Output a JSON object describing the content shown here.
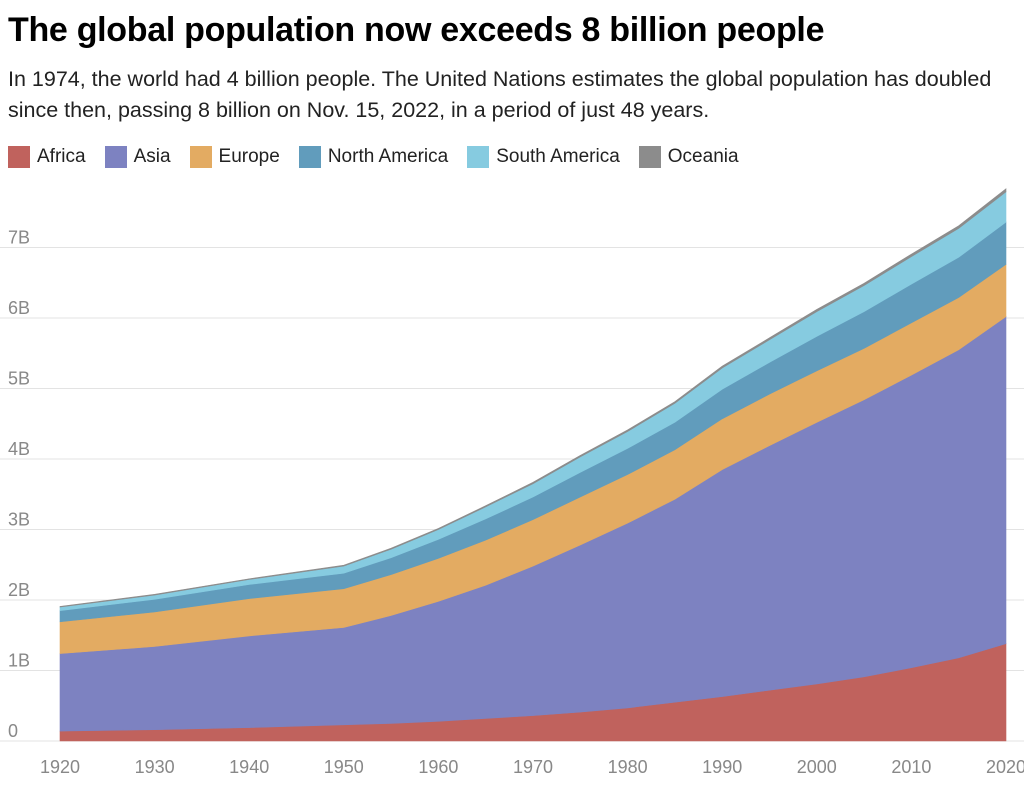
{
  "header": {
    "title": "The global population now exceeds 8 billion people",
    "subtitle": "In 1974, the world had 4 billion people. The United Nations estimates the global population has doubled since then, passing 8 billion on Nov. 15, 2022, in a period of just 48 years."
  },
  "chart_data": {
    "type": "area",
    "stacked": true,
    "title": "The global population now exceeds 8 billion people",
    "subtitle": "In 1974, the world had 4 billion people. The United Nations estimates the global population has doubled since then, passing 8 billion on Nov. 15, 2022, in a period of just 48 years.",
    "xlabel": "",
    "ylabel": "",
    "x": [
      1920,
      1930,
      1940,
      1950,
      1955,
      1960,
      1965,
      1970,
      1975,
      1980,
      1985,
      1990,
      1995,
      2000,
      2005,
      2010,
      2015,
      2020
    ],
    "xlim": [
      1920,
      2020
    ],
    "ylim": [
      0,
      7.9
    ],
    "x_ticks": [
      "1920",
      "1930",
      "1940",
      "1950",
      "1960",
      "1970",
      "1980",
      "1990",
      "2000",
      "2010",
      "2020"
    ],
    "y_ticks": [
      "0",
      "1B",
      "2B",
      "3B",
      "4B",
      "5B",
      "6B",
      "7B"
    ],
    "y_tick_values": [
      0,
      1,
      2,
      3,
      4,
      5,
      6,
      7
    ],
    "grid": true,
    "legend_position": "top-left",
    "series": [
      {
        "name": "Africa",
        "color": "#c0625d",
        "values": [
          0.14,
          0.16,
          0.19,
          0.23,
          0.25,
          0.28,
          0.32,
          0.36,
          0.41,
          0.47,
          0.55,
          0.63,
          0.72,
          0.81,
          0.91,
          1.04,
          1.18,
          1.38
        ]
      },
      {
        "name": "Asia",
        "color": "#7d82c1",
        "values": [
          1.1,
          1.18,
          1.3,
          1.38,
          1.53,
          1.7,
          1.89,
          2.12,
          2.37,
          2.62,
          2.88,
          3.22,
          3.47,
          3.71,
          3.93,
          4.15,
          4.37,
          4.64
        ]
      },
      {
        "name": "Europe",
        "color": "#e3ab62",
        "values": [
          0.45,
          0.49,
          0.53,
          0.55,
          0.58,
          0.61,
          0.64,
          0.66,
          0.68,
          0.69,
          0.7,
          0.72,
          0.73,
          0.73,
          0.73,
          0.74,
          0.74,
          0.74
        ]
      },
      {
        "name": "North America",
        "color": "#619cbc",
        "values": [
          0.16,
          0.18,
          0.2,
          0.22,
          0.24,
          0.27,
          0.3,
          0.32,
          0.35,
          0.37,
          0.39,
          0.42,
          0.45,
          0.49,
          0.52,
          0.55,
          0.57,
          0.6
        ]
      },
      {
        "name": "South America",
        "color": "#86cbe0",
        "values": [
          0.05,
          0.06,
          0.07,
          0.1,
          0.12,
          0.14,
          0.17,
          0.19,
          0.22,
          0.24,
          0.27,
          0.3,
          0.32,
          0.35,
          0.37,
          0.39,
          0.41,
          0.43
        ]
      },
      {
        "name": "Oceania",
        "color": "#8c8c8c",
        "values": [
          0.009,
          0.01,
          0.011,
          0.013,
          0.014,
          0.016,
          0.017,
          0.019,
          0.021,
          0.023,
          0.024,
          0.027,
          0.029,
          0.031,
          0.033,
          0.036,
          0.039,
          0.042
        ]
      }
    ]
  }
}
